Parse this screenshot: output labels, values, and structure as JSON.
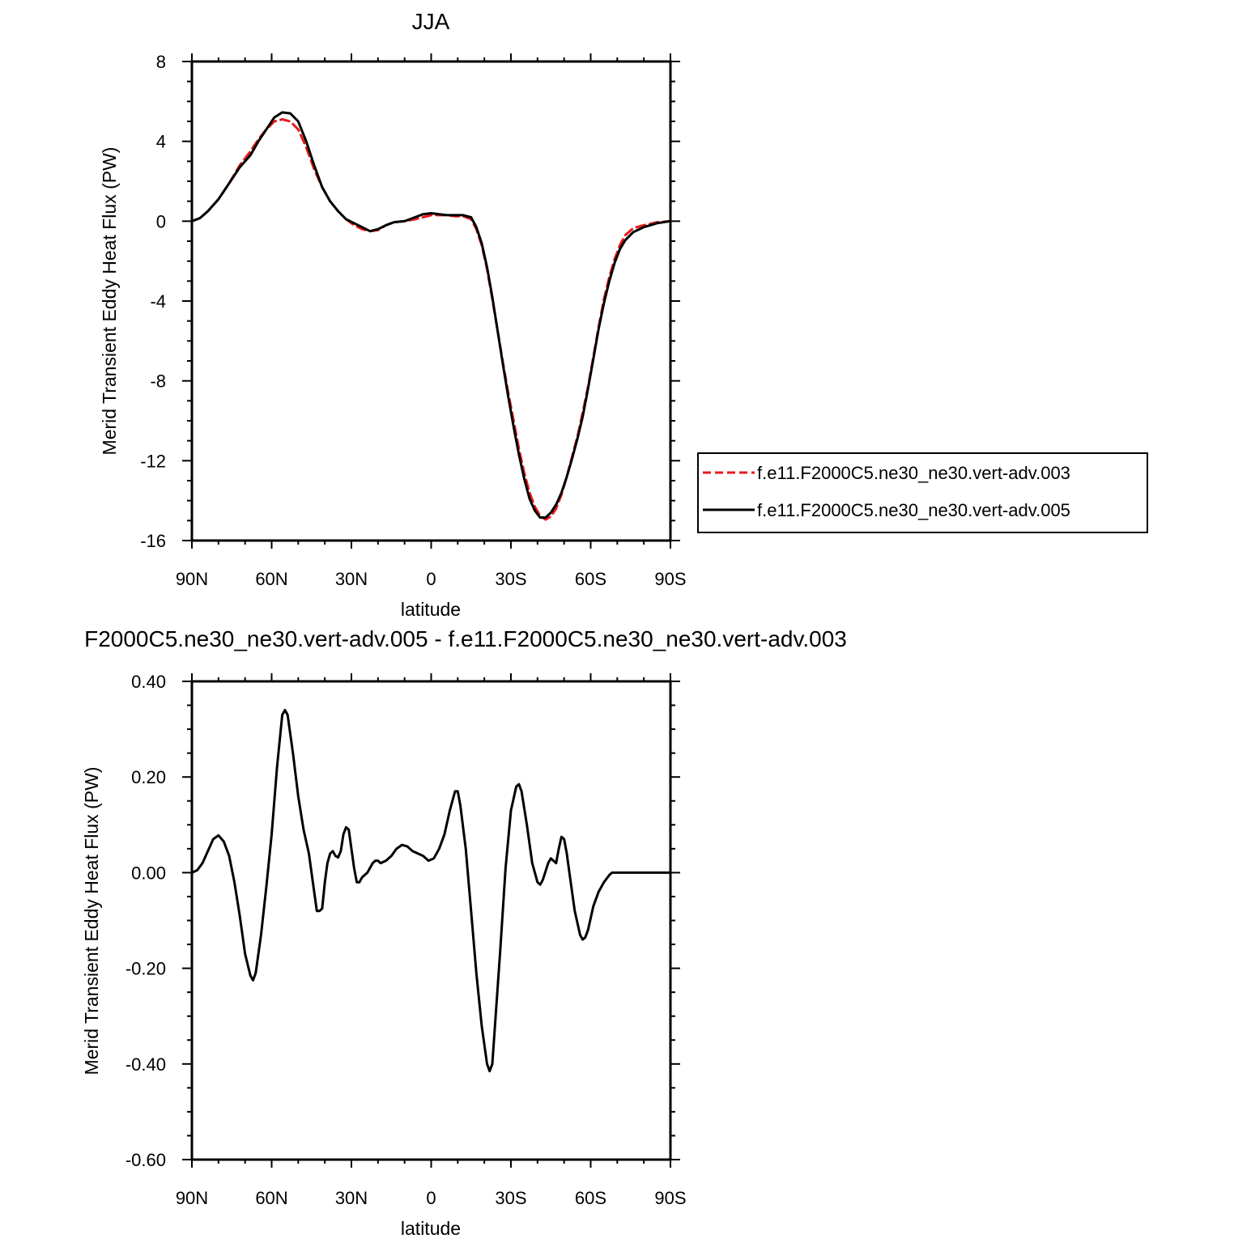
{
  "chart_data": [
    {
      "type": "line",
      "title": "JJA",
      "xlabel": "latitude",
      "ylabel": "Merid Transient Eddy Heat Flux (PW)",
      "xlim": [
        90,
        -90
      ],
      "ylim": [
        -16,
        8
      ],
      "x_ticks": [
        {
          "value": 90,
          "label": "90N"
        },
        {
          "value": 60,
          "label": "60N"
        },
        {
          "value": 30,
          "label": "30N"
        },
        {
          "value": 0,
          "label": "0"
        },
        {
          "value": -30,
          "label": "30S"
        },
        {
          "value": -60,
          "label": "60S"
        },
        {
          "value": -90,
          "label": "90S"
        }
      ],
      "y_ticks": [
        {
          "value": 8,
          "label": "8"
        },
        {
          "value": 4,
          "label": "4"
        },
        {
          "value": 0,
          "label": "0"
        },
        {
          "value": -4,
          "label": "-4"
        },
        {
          "value": -8,
          "label": "-8"
        },
        {
          "value": -12,
          "label": "-12"
        },
        {
          "value": -16,
          "label": "-16"
        }
      ],
      "grid": false,
      "legend_position": "right",
      "series": [
        {
          "name": "f.e11.F2000C5.ne30_ne30.vert-adv.003",
          "color": "#e8191c",
          "dash": "dashed",
          "points": [
            [
              90,
              0
            ],
            [
              87,
              0.15
            ],
            [
              84,
              0.5
            ],
            [
              80,
              1.1
            ],
            [
              76,
              1.9
            ],
            [
              72,
              2.8
            ],
            [
              68,
              3.5
            ],
            [
              65,
              4.1
            ],
            [
              62,
              4.6
            ],
            [
              59,
              5.0
            ],
            [
              56,
              5.1
            ],
            [
              53,
              5.0
            ],
            [
              50,
              4.6
            ],
            [
              47,
              3.7
            ],
            [
              44,
              2.6
            ],
            [
              41,
              1.7
            ],
            [
              38,
              1.0
            ],
            [
              35,
              0.5
            ],
            [
              32,
              0.1
            ],
            [
              29,
              -0.2
            ],
            [
              26,
              -0.4
            ],
            [
              23,
              -0.5
            ],
            [
              20,
              -0.45
            ],
            [
              17,
              -0.2
            ],
            [
              14,
              -0.05
            ],
            [
              10,
              0.0
            ],
            [
              6,
              0.1
            ],
            [
              3,
              0.2
            ],
            [
              0,
              0.3
            ],
            [
              -3,
              0.3
            ],
            [
              -6,
              0.3
            ],
            [
              -9,
              0.25
            ],
            [
              -12,
              0.25
            ],
            [
              -15,
              0.1
            ],
            [
              -17,
              -0.4
            ],
            [
              -19,
              -1.2
            ],
            [
              -21,
              -2.4
            ],
            [
              -23,
              -3.9
            ],
            [
              -25,
              -5.5
            ],
            [
              -27,
              -7.1
            ],
            [
              -29,
              -8.6
            ],
            [
              -31,
              -10.0
            ],
            [
              -33,
              -11.4
            ],
            [
              -35,
              -12.6
            ],
            [
              -37,
              -13.6
            ],
            [
              -39,
              -14.3
            ],
            [
              -41,
              -14.75
            ],
            [
              -43,
              -14.95
            ],
            [
              -45,
              -14.8
            ],
            [
              -47,
              -14.4
            ],
            [
              -49,
              -13.7
            ],
            [
              -51,
              -12.8
            ],
            [
              -53,
              -11.8
            ],
            [
              -55,
              -10.8
            ],
            [
              -57,
              -9.6
            ],
            [
              -59,
              -8.3
            ],
            [
              -61,
              -6.8
            ],
            [
              -63,
              -5.3
            ],
            [
              -65,
              -3.9
            ],
            [
              -67,
              -2.8
            ],
            [
              -69,
              -1.9
            ],
            [
              -71,
              -1.2
            ],
            [
              -73,
              -0.7
            ],
            [
              -76,
              -0.35
            ],
            [
              -80,
              -0.2
            ],
            [
              -85,
              -0.05
            ],
            [
              -90,
              0
            ]
          ]
        },
        {
          "name": "f.e11.F2000C5.ne30_ne30.vert-adv.005",
          "color": "#000000",
          "dash": "solid",
          "points": [
            [
              90,
              0
            ],
            [
              87,
              0.15
            ],
            [
              84,
              0.5
            ],
            [
              80,
              1.1
            ],
            [
              76,
              1.9
            ],
            [
              72,
              2.7
            ],
            [
              68,
              3.3
            ],
            [
              65,
              4.0
            ],
            [
              62,
              4.6
            ],
            [
              59,
              5.2
            ],
            [
              56,
              5.45
            ],
            [
              53,
              5.4
            ],
            [
              50,
              5.0
            ],
            [
              47,
              4.0
            ],
            [
              44,
              2.8
            ],
            [
              41,
              1.7
            ],
            [
              38,
              1.0
            ],
            [
              35,
              0.5
            ],
            [
              32,
              0.1
            ],
            [
              29,
              -0.1
            ],
            [
              26,
              -0.3
            ],
            [
              23,
              -0.5
            ],
            [
              20,
              -0.4
            ],
            [
              17,
              -0.2
            ],
            [
              14,
              -0.05
            ],
            [
              10,
              0.0
            ],
            [
              6,
              0.2
            ],
            [
              3,
              0.35
            ],
            [
              0,
              0.4
            ],
            [
              -3,
              0.35
            ],
            [
              -6,
              0.3
            ],
            [
              -9,
              0.3
            ],
            [
              -12,
              0.3
            ],
            [
              -15,
              0.2
            ],
            [
              -17,
              -0.3
            ],
            [
              -19,
              -1.1
            ],
            [
              -21,
              -2.3
            ],
            [
              -23,
              -3.8
            ],
            [
              -25,
              -5.5
            ],
            [
              -27,
              -7.2
            ],
            [
              -29,
              -8.8
            ],
            [
              -31,
              -10.3
            ],
            [
              -33,
              -11.7
            ],
            [
              -35,
              -12.9
            ],
            [
              -37,
              -13.9
            ],
            [
              -39,
              -14.5
            ],
            [
              -41,
              -14.85
            ],
            [
              -43,
              -14.85
            ],
            [
              -45,
              -14.6
            ],
            [
              -47,
              -14.2
            ],
            [
              -49,
              -13.6
            ],
            [
              -51,
              -12.8
            ],
            [
              -53,
              -11.9
            ],
            [
              -55,
              -10.9
            ],
            [
              -57,
              -9.8
            ],
            [
              -59,
              -8.4
            ],
            [
              -61,
              -6.9
            ],
            [
              -63,
              -5.4
            ],
            [
              -65,
              -4.1
            ],
            [
              -67,
              -3.0
            ],
            [
              -69,
              -2.1
            ],
            [
              -71,
              -1.4
            ],
            [
              -73,
              -0.95
            ],
            [
              -76,
              -0.55
            ],
            [
              -80,
              -0.3
            ],
            [
              -85,
              -0.1
            ],
            [
              -90,
              0
            ]
          ]
        }
      ]
    },
    {
      "type": "line",
      "title": "F2000C5.ne30_ne30.vert-adv.005 - f.e11.F2000C5.ne30_ne30.vert-adv.003",
      "xlabel": "latitude",
      "ylabel": "Merid Transient Eddy Heat Flux (PW)",
      "xlim": [
        90,
        -90
      ],
      "ylim": [
        -0.6,
        0.4
      ],
      "x_ticks": [
        {
          "value": 90,
          "label": "90N"
        },
        {
          "value": 60,
          "label": "60N"
        },
        {
          "value": 30,
          "label": "30N"
        },
        {
          "value": 0,
          "label": "0"
        },
        {
          "value": -30,
          "label": "30S"
        },
        {
          "value": -60,
          "label": "60S"
        },
        {
          "value": -90,
          "label": "90S"
        }
      ],
      "y_ticks": [
        {
          "value": 0.4,
          "label": "0.40"
        },
        {
          "value": 0.2,
          "label": "0.20"
        },
        {
          "value": 0.0,
          "label": "0.00"
        },
        {
          "value": -0.2,
          "label": "-0.20"
        },
        {
          "value": -0.4,
          "label": "-0.40"
        },
        {
          "value": -0.6,
          "label": "-0.60"
        }
      ],
      "grid": false,
      "series": [
        {
          "color": "#000000",
          "dash": "solid",
          "points": [
            [
              90,
              0
            ],
            [
              88,
              0.005
            ],
            [
              86,
              0.02
            ],
            [
              84,
              0.045
            ],
            [
              82,
              0.07
            ],
            [
              80,
              0.078
            ],
            [
              78,
              0.065
            ],
            [
              76,
              0.035
            ],
            [
              74,
              -0.02
            ],
            [
              72,
              -0.09
            ],
            [
              70,
              -0.17
            ],
            [
              68,
              -0.215
            ],
            [
              67,
              -0.225
            ],
            [
              66,
              -0.21
            ],
            [
              64,
              -0.13
            ],
            [
              62,
              -0.03
            ],
            [
              60,
              0.08
            ],
            [
              58,
              0.22
            ],
            [
              56,
              0.33
            ],
            [
              55,
              0.34
            ],
            [
              54,
              0.33
            ],
            [
              52,
              0.25
            ],
            [
              50,
              0.16
            ],
            [
              48,
              0.09
            ],
            [
              46,
              0.04
            ],
            [
              44,
              -0.04
            ],
            [
              43,
              -0.08
            ],
            [
              42,
              -0.08
            ],
            [
              41,
              -0.075
            ],
            [
              40,
              -0.02
            ],
            [
              39,
              0.02
            ],
            [
              38,
              0.04
            ],
            [
              37,
              0.045
            ],
            [
              36,
              0.035
            ],
            [
              35,
              0.032
            ],
            [
              34,
              0.045
            ],
            [
              33,
              0.08
            ],
            [
              32,
              0.095
            ],
            [
              31,
              0.09
            ],
            [
              30,
              0.05
            ],
            [
              29,
              0.01
            ],
            [
              28,
              -0.02
            ],
            [
              27,
              -0.02
            ],
            [
              26,
              -0.01
            ],
            [
              24,
              0.0
            ],
            [
              22,
              0.02
            ],
            [
              21,
              0.025
            ],
            [
              20,
              0.025
            ],
            [
              19,
              0.02
            ],
            [
              17,
              0.025
            ],
            [
              15,
              0.035
            ],
            [
              13,
              0.05
            ],
            [
              11,
              0.058
            ],
            [
              9,
              0.055
            ],
            [
              7,
              0.045
            ],
            [
              5,
              0.04
            ],
            [
              3,
              0.035
            ],
            [
              1,
              0.025
            ],
            [
              -1,
              0.03
            ],
            [
              -3,
              0.05
            ],
            [
              -5,
              0.08
            ],
            [
              -7,
              0.13
            ],
            [
              -9,
              0.17
            ],
            [
              -10,
              0.17
            ],
            [
              -11,
              0.14
            ],
            [
              -13,
              0.05
            ],
            [
              -15,
              -0.08
            ],
            [
              -17,
              -0.21
            ],
            [
              -19,
              -0.32
            ],
            [
              -21,
              -0.4
            ],
            [
              -22,
              -0.415
            ],
            [
              -23,
              -0.4
            ],
            [
              -24,
              -0.32
            ],
            [
              -26,
              -0.16
            ],
            [
              -28,
              0.01
            ],
            [
              -30,
              0.13
            ],
            [
              -32,
              0.18
            ],
            [
              -33,
              0.185
            ],
            [
              -34,
              0.17
            ],
            [
              -36,
              0.1
            ],
            [
              -38,
              0.02
            ],
            [
              -40,
              -0.02
            ],
            [
              -41,
              -0.025
            ],
            [
              -42,
              -0.015
            ],
            [
              -44,
              0.02
            ],
            [
              -45,
              0.03
            ],
            [
              -46,
              0.025
            ],
            [
              -47,
              0.02
            ],
            [
              -48,
              0.05
            ],
            [
              -49,
              0.075
            ],
            [
              -50,
              0.07
            ],
            [
              -51,
              0.04
            ],
            [
              -52,
              0.0
            ],
            [
              -54,
              -0.08
            ],
            [
              -56,
              -0.13
            ],
            [
              -57,
              -0.14
            ],
            [
              -58,
              -0.135
            ],
            [
              -59,
              -0.12
            ],
            [
              -61,
              -0.07
            ],
            [
              -63,
              -0.04
            ],
            [
              -65,
              -0.02
            ],
            [
              -67,
              -0.005
            ],
            [
              -68,
              0
            ],
            [
              -70,
              0
            ],
            [
              -90,
              0
            ]
          ]
        }
      ]
    }
  ]
}
